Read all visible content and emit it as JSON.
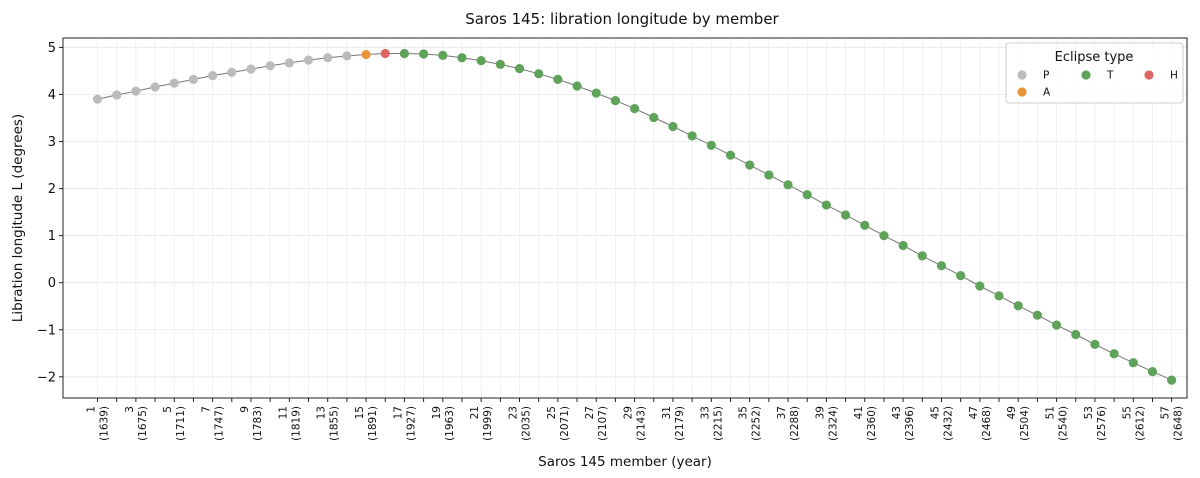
{
  "chart_data": {
    "type": "scatter",
    "title": "Saros 145: libration longitude by member",
    "xlabel": "Saros 145 member (year)",
    "ylabel": "Libration longitude L (degrees)",
    "xlim": [
      -0.8,
      57.8
    ],
    "ylim": [
      -2.45,
      5.2
    ],
    "yticks": [
      -2,
      -1,
      0,
      1,
      2,
      3,
      4,
      5
    ],
    "yticklabels": [
      "−2",
      "−1",
      "0",
      "1",
      "2",
      "3",
      "4",
      "5"
    ],
    "grid": true,
    "legend": {
      "title": "Eclipse type",
      "position": "top-right",
      "entries": [
        {
          "label": "P",
          "color": "#bbbbbb"
        },
        {
          "label": "T",
          "color": "#5fa35a"
        },
        {
          "label": "H",
          "color": "#e06666"
        },
        {
          "label": "A",
          "color": "#e8953a"
        }
      ]
    },
    "colors": {
      "P": "#bbbbbb",
      "A": "#e8953a",
      "T": "#5fa35a",
      "H": "#e06666",
      "line": "#777777"
    },
    "tick_labels": [
      {
        "member": "1",
        "year": "(1639)"
      },
      {
        "member": "3",
        "year": "(1675)"
      },
      {
        "member": "5",
        "year": "(1711)"
      },
      {
        "member": "7",
        "year": "(1747)"
      },
      {
        "member": "9",
        "year": "(1783)"
      },
      {
        "member": "11",
        "year": "(1819)"
      },
      {
        "member": "13",
        "year": "(1855)"
      },
      {
        "member": "15",
        "year": "(1891)"
      },
      {
        "member": "17",
        "year": "(1927)"
      },
      {
        "member": "19",
        "year": "(1963)"
      },
      {
        "member": "21",
        "year": "(1999)"
      },
      {
        "member": "23",
        "year": "(2035)"
      },
      {
        "member": "25",
        "year": "(2071)"
      },
      {
        "member": "27",
        "year": "(2107)"
      },
      {
        "member": "29",
        "year": "(2143)"
      },
      {
        "member": "31",
        "year": "(2179)"
      },
      {
        "member": "33",
        "year": "(2215)"
      },
      {
        "member": "35",
        "year": "(2252)"
      },
      {
        "member": "37",
        "year": "(2288)"
      },
      {
        "member": "39",
        "year": "(2324)"
      },
      {
        "member": "41",
        "year": "(2360)"
      },
      {
        "member": "43",
        "year": "(2396)"
      },
      {
        "member": "45",
        "year": "(2432)"
      },
      {
        "member": "47",
        "year": "(2468)"
      },
      {
        "member": "49",
        "year": "(2504)"
      },
      {
        "member": "51",
        "year": "(2540)"
      },
      {
        "member": "53",
        "year": "(2576)"
      },
      {
        "member": "55",
        "year": "(2612)"
      },
      {
        "member": "57",
        "year": "(2648)"
      }
    ],
    "members": [
      1,
      2,
      3,
      4,
      5,
      6,
      7,
      8,
      9,
      10,
      11,
      12,
      13,
      14,
      15,
      16,
      17,
      18,
      19,
      20,
      21,
      22,
      23,
      24,
      25,
      26,
      27,
      28,
      29,
      30,
      31,
      32,
      33,
      34,
      35,
      36,
      37,
      38,
      39,
      40,
      41,
      42,
      43,
      44,
      45,
      46,
      47,
      48,
      49,
      50,
      51,
      52,
      53,
      54,
      55,
      56,
      57
    ],
    "values": [
      3.9,
      3.99,
      4.07,
      4.16,
      4.24,
      4.32,
      4.4,
      4.47,
      4.54,
      4.61,
      4.67,
      4.73,
      4.78,
      4.82,
      4.85,
      4.87,
      4.87,
      4.86,
      4.83,
      4.78,
      4.72,
      4.64,
      4.55,
      4.44,
      4.32,
      4.18,
      4.03,
      3.87,
      3.7,
      3.51,
      3.32,
      3.12,
      2.92,
      2.71,
      2.5,
      2.29,
      2.08,
      1.87,
      1.65,
      1.44,
      1.22,
      1.0,
      0.79,
      0.57,
      0.36,
      0.15,
      -0.07,
      -0.28,
      -0.49,
      -0.69,
      -0.9,
      -1.1,
      -1.31,
      -1.51,
      -1.7,
      -1.89,
      -2.07
    ],
    "types": [
      "P",
      "P",
      "P",
      "P",
      "P",
      "P",
      "P",
      "P",
      "P",
      "P",
      "P",
      "P",
      "P",
      "P",
      "A",
      "H",
      "T",
      "T",
      "T",
      "T",
      "T",
      "T",
      "T",
      "T",
      "T",
      "T",
      "T",
      "T",
      "T",
      "T",
      "T",
      "T",
      "T",
      "T",
      "T",
      "T",
      "T",
      "T",
      "T",
      "T",
      "T",
      "T",
      "T",
      "T",
      "T",
      "T",
      "T",
      "T",
      "T",
      "T",
      "T",
      "T",
      "T",
      "T",
      "T",
      "T",
      "T"
    ]
  }
}
